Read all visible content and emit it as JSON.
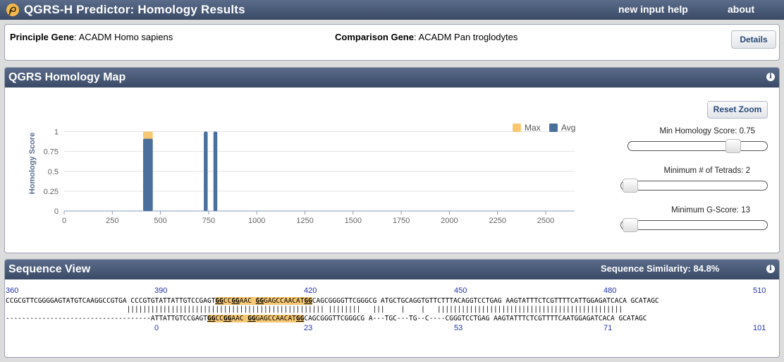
{
  "header": {
    "title": "QGRS-H Predictor: Homology Results",
    "nav": [
      "new input",
      "help",
      "about"
    ]
  },
  "genes": {
    "principle_label": "Principle Gene",
    "principle_value": "ACADM Homo sapiens",
    "comparison_label": "Comparison Gene",
    "comparison_value": "ACADM Pan troglodytes",
    "details_button": "Details"
  },
  "map_panel": {
    "title": "QGRS Homology Map",
    "reset_zoom": "Reset Zoom",
    "min_homology": {
      "label": "Min Homology Score: 0.75",
      "value": 0.75,
      "min": 0,
      "max": 1
    },
    "min_tetrads": {
      "label": "Minimum # of Tetrads: 2",
      "value": 2,
      "min": 2,
      "max": 6
    },
    "min_gscore": {
      "label": "Minimum G-Score: 13",
      "value": 13,
      "min": 13,
      "max": 105
    }
  },
  "chart_data": {
    "type": "bar",
    "ylabel": "Homology Score",
    "xlim": [
      0,
      2650
    ],
    "ylim": [
      0,
      1.2
    ],
    "xticks": [
      "0",
      "250",
      "500",
      "750",
      "1000",
      "1250",
      "1500",
      "1750",
      "2000",
      "2250",
      "2500"
    ],
    "yticks": [
      "0",
      "0.25",
      "0.5",
      "0.75",
      "1"
    ],
    "legend": "top-right",
    "series": [
      {
        "name": "Max",
        "color": "#f7c873",
        "bars": [
          {
            "start": 410,
            "end": 460,
            "value": 1.0
          }
        ]
      },
      {
        "name": "Avg",
        "color": "#4a6f9c",
        "bars": [
          {
            "start": 410,
            "end": 460,
            "value": 0.91
          },
          {
            "start": 725,
            "end": 745,
            "value": 1.0
          },
          {
            "start": 775,
            "end": 795,
            "value": 1.0
          }
        ]
      }
    ]
  },
  "sequence_panel": {
    "title": "Sequence View",
    "similarity": "Sequence Similarity: 84.8%",
    "top_positions": [
      "360",
      "390",
      "420",
      "450",
      "480",
      "510"
    ],
    "bottom_positions": [
      "0",
      "23",
      "53",
      "71",
      "101"
    ],
    "row1": "CCGCGTTCGGGGAGTATGTCAAGGCCGTGA CCCGTGTATTATTGTCCGAGTGGCCGGAACGGGAGCCAACATGGCAGCGGGGTTCGGGCG ATGCTGCAGGTGTTCTTTACAGGTCCTGAG AAGTATTTCTCGTTTTCATTGGAGATCACA GCATAGC",
    "row2": "                              ||||||||||||||||||||||||||||||||||||||||||||||||| ||||||||   |||    |    |   ||||||||||||||||||||||||||||||||||||||||||||||",
    "row3": "------------------------------------ATTATTGTCCGAGTGGCCGGAACGGGAGCCAACATGGCAGCGGGTTCGGGCG A---TGC---TG--C----CGGGTCCTGAG AAGTATTTCTCGTTTTCAATGGAGATCACA GCATAGC"
  }
}
